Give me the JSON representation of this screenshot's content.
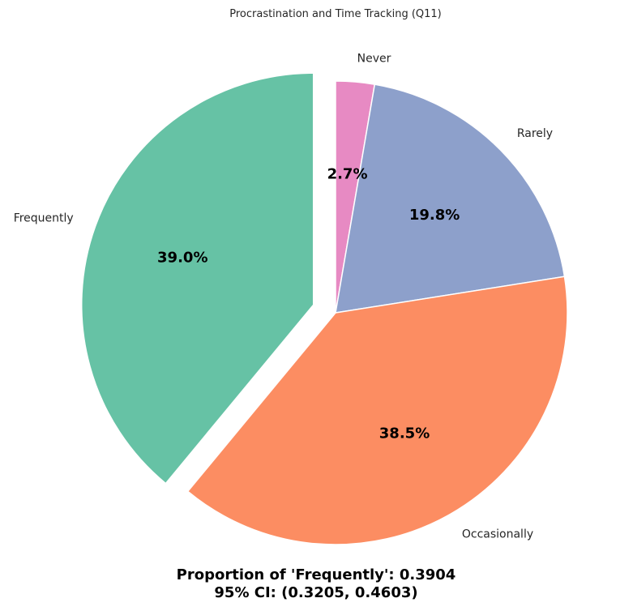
{
  "chart_data": {
    "type": "pie",
    "title": "Procrastination and Time Tracking (Q11)",
    "start_angle_deg": 90,
    "direction": "clockwise",
    "exploded_category": "Frequently",
    "slices": [
      {
        "label": "Never",
        "value": 2.7,
        "pct_label": "2.7%",
        "color": "#e78ac3"
      },
      {
        "label": "Rarely",
        "value": 19.8,
        "pct_label": "19.8%",
        "color": "#8da0cb"
      },
      {
        "label": "Occasionally",
        "value": 38.5,
        "pct_label": "38.5%",
        "color": "#fc8d62"
      },
      {
        "label": "Frequently",
        "value": 39.0,
        "pct_label": "39.0%",
        "color": "#66c2a5"
      }
    ],
    "caption": {
      "line1": "Proportion of 'Frequently': 0.3904",
      "line2": "95% CI: (0.3205, 0.4603)"
    }
  }
}
